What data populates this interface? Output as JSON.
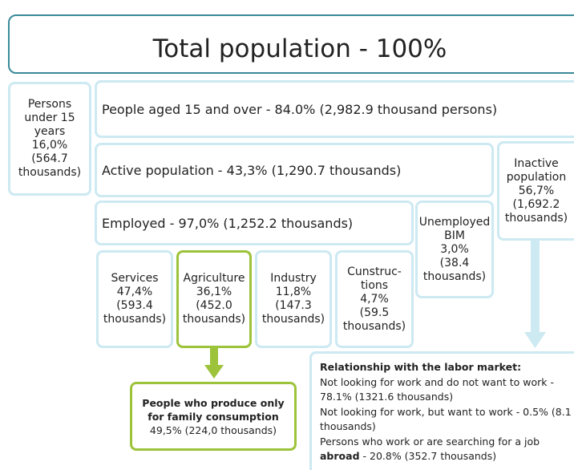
{
  "title": "Total population - 100%",
  "under15": {
    "lines": [
      "Persons",
      "under 15",
      "years",
      "16,0%",
      "(564.7",
      "thousands)"
    ]
  },
  "aged15": "People aged 15 and over - 84.0% (2,982.9 thousand persons)",
  "active": "Active population - 43,3%  (1,290.7 thousands)",
  "inactive": {
    "lines": [
      "Inactive",
      "population",
      "56,7%",
      "(1,692.2",
      "thousands)"
    ]
  },
  "employed": "Employed - 97,0%  (1,252.2 thousands)",
  "unemployed": {
    "lines": [
      "Unemployed",
      "BIM",
      "3,0%",
      "(38.4",
      "thousands)"
    ]
  },
  "sectors": [
    {
      "lines": [
        "Services",
        "47,4%",
        "(593.4",
        "thousands)"
      ]
    },
    {
      "lines": [
        "Agriculture",
        "36,1%",
        "(452.0",
        "thousands)"
      ]
    },
    {
      "lines": [
        "Industry",
        "11,8%",
        "(147.3",
        "thousands)"
      ]
    },
    {
      "lines": [
        "Cunstruc-",
        "tions",
        "4,7%",
        "(59.5",
        "thousands)"
      ]
    }
  ],
  "family": {
    "title": "People who produce only for family consumption",
    "value": "49,5% (224,0 thousands)"
  },
  "relationship": {
    "title": "Relationship with the labor market:",
    "items": [
      "Not looking for work and do not want to work - 78.1% (1321.6 thousands)",
      "Not looking for work, but want to work - 0.5% (8.1 thousands)"
    ],
    "last": {
      "start": "Persons who work or are searching for a job",
      "bold": "abroad",
      "end": "- 20.8% (352.7 thousands)"
    }
  }
}
